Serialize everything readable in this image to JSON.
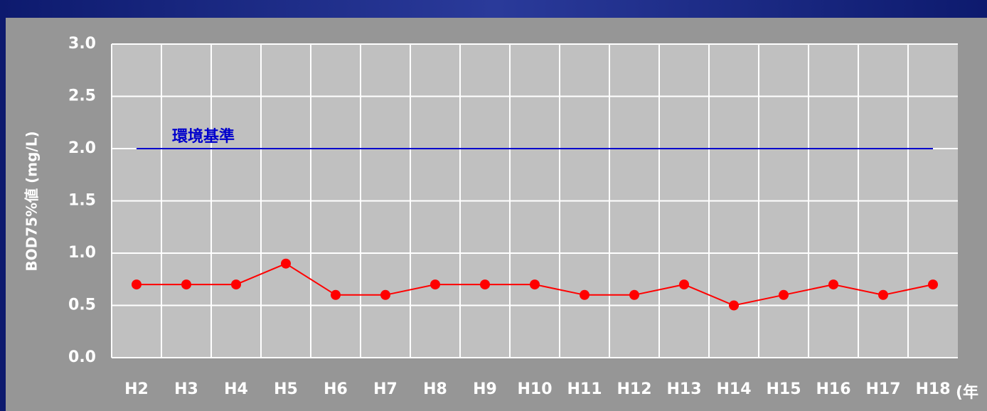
{
  "chart_data": {
    "type": "line",
    "y_label": "BOD75%値 (mg/L)",
    "x_label": "(年",
    "categories": [
      "H2",
      "H3",
      "H4",
      "H5",
      "H6",
      "H7",
      "H8",
      "H9",
      "H10",
      "H11",
      "H12",
      "H13",
      "H14",
      "H15",
      "H16",
      "H17",
      "H18"
    ],
    "values": [
      0.7,
      0.7,
      0.7,
      0.9,
      0.6,
      0.6,
      0.7,
      0.7,
      0.7,
      0.6,
      0.6,
      0.7,
      0.5,
      0.6,
      0.7,
      0.6,
      0.7
    ],
    "color": "#ff0000",
    "reference_line": {
      "label": "環境基準",
      "value": 2.0,
      "color": "#0000cc"
    },
    "ylim": [
      0,
      3
    ],
    "yticks": [
      {
        "value": 0,
        "label": "0.0"
      },
      {
        "value": 0.5,
        "label": "0.5"
      },
      {
        "value": 1,
        "label": "1.0"
      },
      {
        "value": 1.5,
        "label": "1.5"
      },
      {
        "value": 2,
        "label": "2.0"
      },
      {
        "value": 2.5,
        "label": "2.5"
      },
      {
        "value": 3,
        "label": "3.0"
      }
    ],
    "grid": true
  }
}
